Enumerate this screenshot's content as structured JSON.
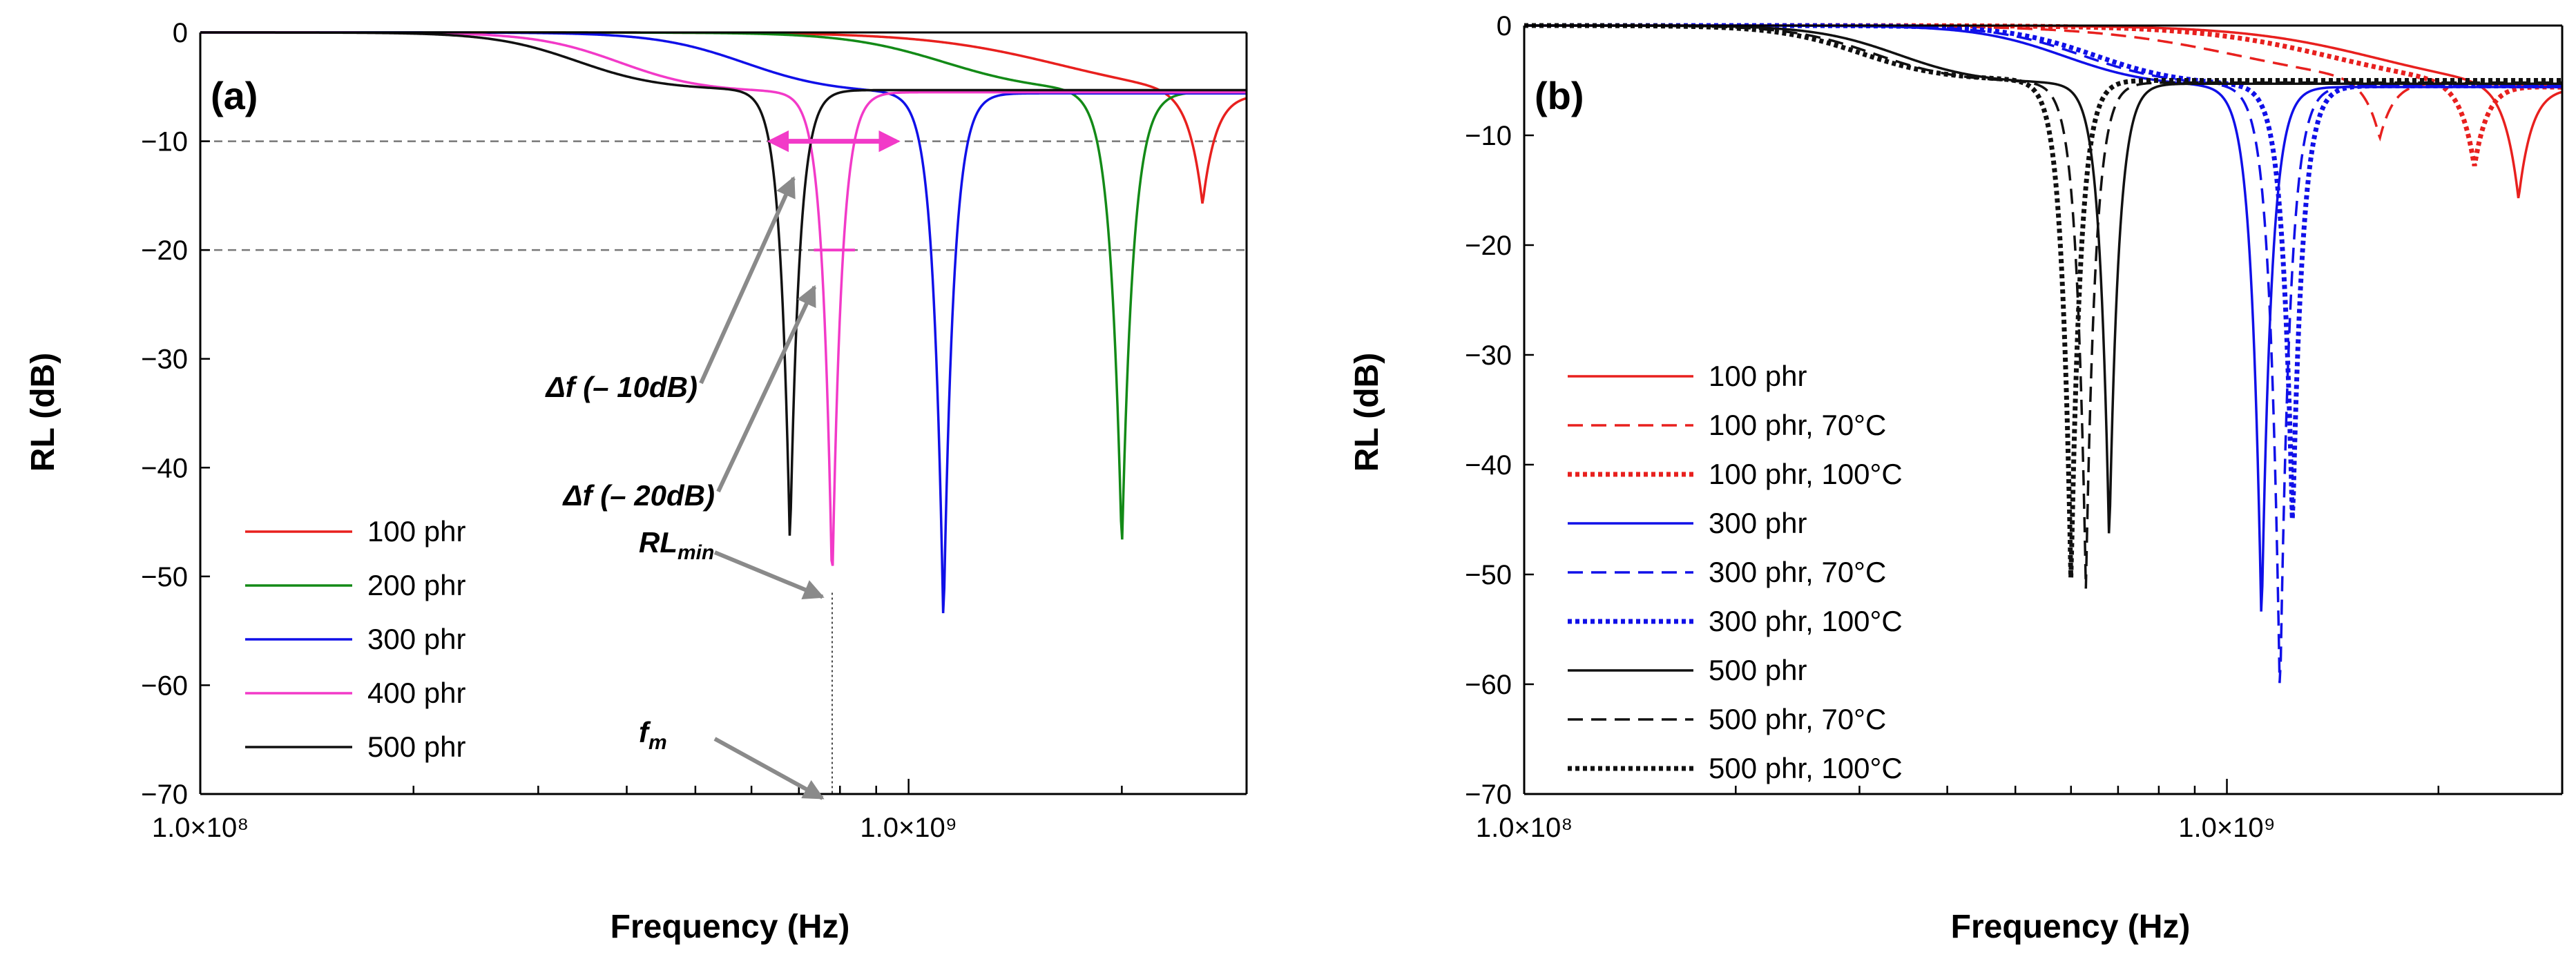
{
  "chart_data": [
    {
      "type": "line",
      "panel_label": "(a)",
      "xlabel": "Frequency (Hz)",
      "ylabel": "RL (dB)",
      "xscale": "log",
      "xlim": [
        100000000,
        3000000000
      ],
      "ylim": [
        -70,
        0
      ],
      "x_tick_labels": [
        "1.0×10⁸",
        "1.0×10⁹"
      ],
      "y_ticks": [
        0,
        -10,
        -20,
        -30,
        -40,
        -50,
        -60,
        -70
      ],
      "y_tick_labels": [
        "0",
        "−10",
        "−20",
        "−30",
        "−40",
        "−50",
        "−60",
        "−70"
      ],
      "reference_lines": [
        -10,
        -20
      ],
      "legend_position": "bottom-left",
      "series": [
        {
          "name": "100 phr",
          "color": "#e8201e",
          "dash": "solid",
          "dip_freq": 2600000000,
          "rl_min": -16.5,
          "plateau": -6.0,
          "width": 0.12,
          "skew": 0.8,
          "shift": 0.2
        },
        {
          "name": "200 phr",
          "color": "#138a17",
          "dash": "solid",
          "dip_freq": 2000000000,
          "rl_min": -48,
          "plateau": -5.5,
          "width": 0.1,
          "skew": 0.7,
          "shift": 0.25
        },
        {
          "name": "300 phr",
          "color": "#1010e8",
          "dash": "solid",
          "dip_freq": 1120000000,
          "rl_min": -55,
          "plateau": -5.6,
          "width": 0.09,
          "skew": 0.7,
          "shift": 0.28
        },
        {
          "name": "400 phr",
          "color": "#f23ac8",
          "dash": "solid",
          "dip_freq": 780000000,
          "rl_min": -51.5,
          "plateau": -5.5,
          "width": 0.085,
          "skew": 0.7,
          "shift": 0.3
        },
        {
          "name": "500 phr",
          "color": "#111111",
          "dash": "solid",
          "dip_freq": 680000000,
          "rl_min": -47.5,
          "plateau": -5.3,
          "width": 0.085,
          "skew": 0.7,
          "shift": 0.3
        }
      ],
      "annotations": [
        {
          "text": "Δf (– 10dB)",
          "target_x": 710000000,
          "target_y": -13
        },
        {
          "text": "Δf (– 20dB)",
          "target_x": 760000000,
          "target_y": -23
        },
        {
          "text": "RLmin",
          "main": "RL",
          "sub": "min",
          "target_x": 780000000,
          "target_y": -51.5
        },
        {
          "text": "fm",
          "main": "f",
          "sub": "m",
          "target_x": 780000000,
          "target_y": -70
        }
      ],
      "bandwidth_markers": [
        {
          "level": -10,
          "from_x": 640000000,
          "to_x": 960000000,
          "color": "#f23ac8"
        },
        {
          "level": -20,
          "from_x": 735000000,
          "to_x": 840000000,
          "color": "#f23ac8"
        }
      ],
      "fm_dropline_x": 780000000
    },
    {
      "type": "line",
      "panel_label": "(b)",
      "xlabel": "Frequency (Hz)",
      "ylabel": "RL (dB)",
      "xscale": "log",
      "xlim": [
        100000000,
        3000000000
      ],
      "ylim": [
        -70,
        0
      ],
      "x_tick_labels": [
        "1.0×10⁸",
        "1.0×10⁹"
      ],
      "y_ticks": [
        0,
        -10,
        -20,
        -30,
        -40,
        -50,
        -60,
        -70
      ],
      "y_tick_labels": [
        "0",
        "−10",
        "−20",
        "−30",
        "−40",
        "−50",
        "−60",
        "−70"
      ],
      "legend_position": "bottom-left",
      "series": [
        {
          "name": "100 phr",
          "color": "#e8201e",
          "dash": "solid",
          "dip_freq": 2600000000,
          "rl_min": -16.5,
          "plateau": -6.0,
          "width": 0.12,
          "skew": 0.8,
          "shift": 0.2
        },
        {
          "name": "100 phr, 70°C",
          "color": "#e8201e",
          "dash": "dashed",
          "dip_freq": 1650000000,
          "rl_min": -11,
          "plateau": -5.5,
          "width": 0.13,
          "skew": 0.8,
          "shift": 0.2
        },
        {
          "name": "100 phr, 100°C",
          "color": "#e8201e",
          "dash": "dotted",
          "dip_freq": 2250000000,
          "rl_min": -13.5,
          "plateau": -5.8,
          "width": 0.12,
          "skew": 0.8,
          "shift": 0.2
        },
        {
          "name": "300 phr",
          "color": "#1010e8",
          "dash": "solid",
          "dip_freq": 1120000000,
          "rl_min": -55,
          "plateau": -5.6,
          "width": 0.09,
          "skew": 0.7,
          "shift": 0.28
        },
        {
          "name": "300 phr, 70°C",
          "color": "#1010e8",
          "dash": "dashed",
          "dip_freq": 1190000000,
          "rl_min": -62,
          "plateau": -5.5,
          "width": 0.09,
          "skew": 0.7,
          "shift": 0.28
        },
        {
          "name": "300 phr, 100°C",
          "color": "#1010e8",
          "dash": "dotted",
          "dip_freq": 1240000000,
          "rl_min": -46,
          "plateau": -5.5,
          "width": 0.09,
          "skew": 0.7,
          "shift": 0.28
        },
        {
          "name": "500 phr",
          "color": "#111111",
          "dash": "solid",
          "dip_freq": 680000000,
          "rl_min": -47.5,
          "plateau": -5.3,
          "width": 0.085,
          "skew": 0.7,
          "shift": 0.3
        },
        {
          "name": "500 phr, 70°C",
          "color": "#111111",
          "dash": "dashed",
          "dip_freq": 630000000,
          "rl_min": -51.5,
          "plateau": -5.2,
          "width": 0.085,
          "skew": 0.7,
          "shift": 0.3
        },
        {
          "name": "500 phr, 100°C",
          "color": "#111111",
          "dash": "dotted",
          "dip_freq": 600000000,
          "rl_min": -51,
          "plateau": -5.0,
          "width": 0.085,
          "skew": 0.7,
          "shift": 0.3
        }
      ]
    }
  ]
}
